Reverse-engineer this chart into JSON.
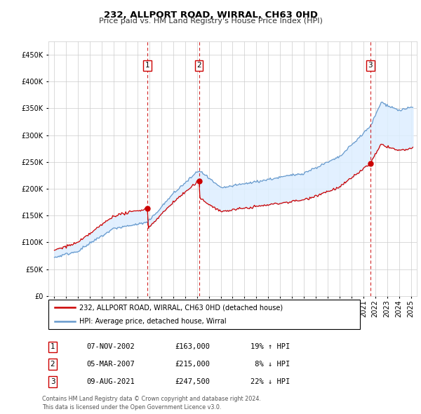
{
  "title": "232, ALLPORT ROAD, WIRRAL, CH63 0HD",
  "subtitle": "Price paid vs. HM Land Registry's House Price Index (HPI)",
  "transactions": [
    {
      "num": 1,
      "date": "07-NOV-2002",
      "date_x": 2002.85,
      "price": 163000,
      "pct": "19%",
      "dir": "↑"
    },
    {
      "num": 2,
      "date": "05-MAR-2007",
      "date_x": 2007.17,
      "price": 215000,
      "pct": "8%",
      "dir": "↓"
    },
    {
      "num": 3,
      "date": "09-AUG-2021",
      "date_x": 2021.6,
      "price": 247500,
      "pct": "22%",
      "dir": "↓"
    }
  ],
  "legend_label_red": "232, ALLPORT ROAD, WIRRAL, CH63 0HD (detached house)",
  "legend_label_blue": "HPI: Average price, detached house, Wirral",
  "footer": "Contains HM Land Registry data © Crown copyright and database right 2024.\nThis data is licensed under the Open Government Licence v3.0.",
  "table_rows": [
    [
      1,
      "07-NOV-2002",
      "£163,000",
      "19% ↑ HPI"
    ],
    [
      2,
      "05-MAR-2007",
      "£215,000",
      " 8% ↓ HPI"
    ],
    [
      3,
      "09-AUG-2021",
      "£247,500",
      "22% ↓ HPI"
    ]
  ],
  "ylim": [
    0,
    475000
  ],
  "xlim": [
    1994.5,
    2025.5
  ],
  "red_color": "#cc0000",
  "blue_color": "#6699cc",
  "shade_color": "#ddeeff",
  "grid_color": "#cccccc"
}
